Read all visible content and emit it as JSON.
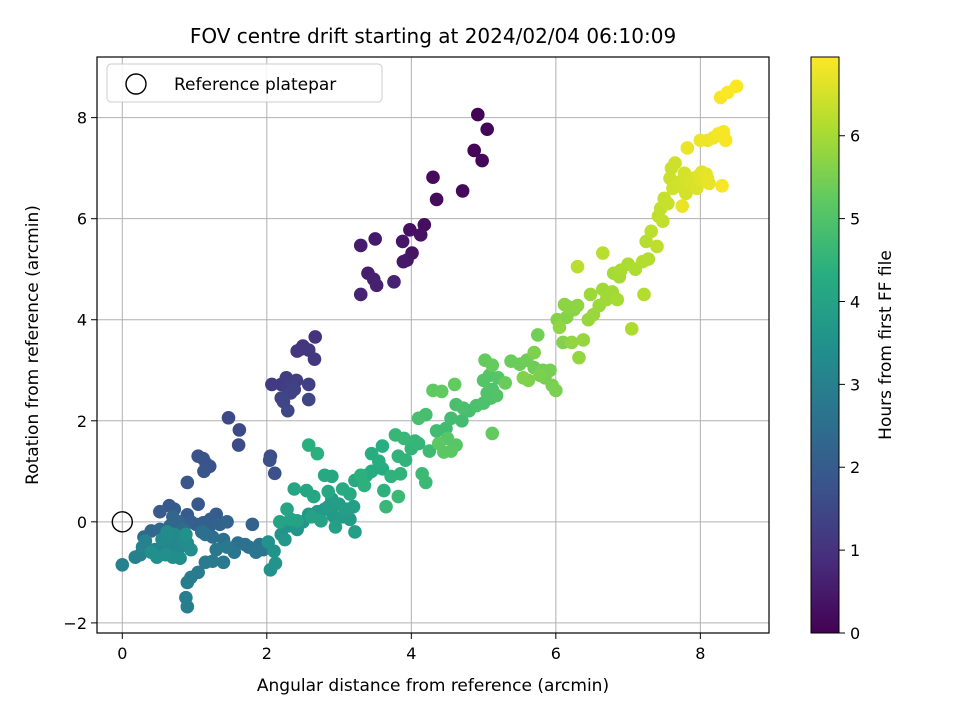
{
  "chart_data": {
    "type": "scatter",
    "title": "FOV centre drift starting at 2024/02/04 06:10:09",
    "xlabel": "Angular distance from reference (arcmin)",
    "ylabel": "Rotation from reference (arcmin)",
    "xlim": [
      -0.35,
      8.95
    ],
    "ylim": [
      -2.2,
      9.2
    ],
    "xticks": [
      0,
      2,
      4,
      6,
      8
    ],
    "yticks": [
      -2,
      0,
      2,
      4,
      6,
      8
    ],
    "grid": true,
    "legend": {
      "placement": "top-left",
      "entries": [
        {
          "label": "Reference platepar",
          "marker": "open-circle"
        }
      ]
    },
    "reference_point": {
      "x": 0,
      "y": 0
    },
    "colorbar": {
      "label": "Hours from first FF file",
      "colormap": "viridis",
      "range": [
        0,
        6.95
      ],
      "ticks": [
        0,
        1,
        2,
        3,
        4,
        5,
        6
      ]
    },
    "points": [
      [
        4.92,
        8.06,
        0.05
      ],
      [
        4.87,
        7.35,
        0.08
      ],
      [
        5.05,
        7.77,
        0.1
      ],
      [
        4.98,
        7.15,
        0.12
      ],
      [
        4.71,
        6.55,
        0.15
      ],
      [
        4.3,
        6.82,
        0.18
      ],
      [
        4.35,
        6.38,
        0.2
      ],
      [
        4.18,
        5.88,
        0.25
      ],
      [
        3.98,
        5.78,
        0.3
      ],
      [
        4.13,
        5.68,
        0.33
      ],
      [
        4.01,
        5.32,
        0.37
      ],
      [
        3.88,
        5.55,
        0.4
      ],
      [
        3.94,
        5.18,
        0.43
      ],
      [
        3.89,
        5.15,
        0.46
      ],
      [
        3.5,
        5.6,
        0.5
      ],
      [
        3.3,
        5.47,
        0.53
      ],
      [
        3.4,
        4.92,
        0.56
      ],
      [
        3.48,
        4.8,
        0.6
      ],
      [
        3.52,
        4.68,
        0.63
      ],
      [
        3.76,
        4.75,
        0.66
      ],
      [
        3.3,
        4.5,
        0.7
      ],
      [
        2.67,
        3.66,
        1.0
      ],
      [
        2.5,
        3.48,
        1.03
      ],
      [
        2.47,
        3.42,
        1.05
      ],
      [
        2.58,
        3.4,
        1.08
      ],
      [
        2.42,
        3.38,
        1.1
      ],
      [
        2.66,
        3.22,
        1.13
      ],
      [
        2.2,
        2.72,
        1.16
      ],
      [
        2.07,
        2.72,
        1.2
      ],
      [
        2.27,
        2.85,
        1.23
      ],
      [
        2.41,
        2.8,
        1.26
      ],
      [
        2.58,
        2.72,
        1.28
      ],
      [
        2.28,
        2.68,
        1.3
      ],
      [
        2.38,
        2.62,
        1.33
      ],
      [
        2.33,
        2.55,
        1.36
      ],
      [
        2.2,
        2.45,
        1.4
      ],
      [
        2.23,
        2.38,
        1.43
      ],
      [
        2.58,
        2.42,
        1.46
      ],
      [
        2.29,
        2.2,
        1.5
      ],
      [
        1.47,
        2.06,
        1.53
      ],
      [
        1.62,
        1.82,
        1.56
      ],
      [
        1.61,
        1.52,
        1.6
      ],
      [
        2.05,
        1.3,
        1.66
      ],
      [
        2.04,
        1.22,
        1.68
      ],
      [
        2.11,
        0.96,
        1.7
      ],
      [
        1.05,
        1.3,
        1.73
      ],
      [
        1.12,
        1.25,
        1.76
      ],
      [
        1.16,
        1.15,
        1.78
      ],
      [
        1.21,
        1.1,
        1.8
      ],
      [
        1.13,
        1.0,
        1.83
      ],
      [
        0.9,
        0.78,
        1.86
      ],
      [
        1.05,
        0.35,
        1.9
      ],
      [
        0.65,
        0.32,
        1.93
      ],
      [
        0.72,
        0.25,
        1.95
      ],
      [
        0.52,
        0.2,
        1.98
      ],
      [
        1.3,
        0.15,
        2.0
      ],
      [
        0.9,
        0.14,
        2.02
      ],
      [
        1.22,
        0.05,
        2.05
      ],
      [
        0.95,
        0.0,
        2.08
      ],
      [
        1.02,
        -0.05,
        2.1
      ],
      [
        1.12,
        -0.02,
        2.12
      ],
      [
        1.2,
        -0.1,
        2.15
      ],
      [
        1.35,
        -0.05,
        2.18
      ],
      [
        1.8,
        -0.05,
        2.2
      ],
      [
        1.45,
        0.0,
        2.22
      ],
      [
        0.7,
        0.1,
        2.25
      ],
      [
        0.78,
        0.0,
        2.28
      ],
      [
        0.66,
        -0.08,
        2.3
      ],
      [
        0.52,
        -0.15,
        2.33
      ],
      [
        0.4,
        -0.18,
        2.36
      ],
      [
        0.3,
        -0.3,
        2.4
      ],
      [
        0.85,
        -0.15,
        2.42
      ],
      [
        0.8,
        -0.22,
        2.45
      ],
      [
        1.1,
        -0.2,
        2.48
      ],
      [
        1.25,
        -0.3,
        2.5
      ],
      [
        1.15,
        -0.25,
        2.52
      ],
      [
        1.4,
        -0.35,
        2.55
      ],
      [
        1.6,
        -0.42,
        2.58
      ],
      [
        1.75,
        -0.5,
        2.6
      ],
      [
        1.7,
        -0.45,
        2.62
      ],
      [
        1.9,
        -0.45,
        2.65
      ],
      [
        1.95,
        -0.55,
        2.68
      ],
      [
        1.85,
        -0.6,
        2.7
      ],
      [
        1.55,
        -0.6,
        2.72
      ],
      [
        1.45,
        -0.5,
        2.75
      ],
      [
        1.3,
        -0.55,
        2.78
      ],
      [
        1.25,
        -0.78,
        2.8
      ],
      [
        1.4,
        -0.8,
        2.82
      ],
      [
        1.15,
        -0.8,
        2.85
      ],
      [
        1.05,
        -1.0,
        2.88
      ],
      [
        0.95,
        -1.1,
        2.9
      ],
      [
        0.9,
        -1.2,
        2.92
      ],
      [
        0.88,
        -1.5,
        2.95
      ],
      [
        0.9,
        -1.68,
        2.98
      ],
      [
        0.0,
        -0.85,
        3.0
      ],
      [
        0.18,
        -0.7,
        3.02
      ],
      [
        0.25,
        -0.65,
        3.04
      ],
      [
        0.28,
        -0.5,
        3.06
      ],
      [
        0.32,
        -0.38,
        3.08
      ],
      [
        0.45,
        -0.55,
        3.1
      ],
      [
        0.5,
        -0.62,
        3.12
      ],
      [
        0.58,
        -0.5,
        3.14
      ],
      [
        0.62,
        -0.58,
        3.16
      ],
      [
        0.7,
        -0.42,
        3.18
      ],
      [
        0.75,
        -0.6,
        3.2
      ],
      [
        0.82,
        -0.48,
        3.22
      ],
      [
        0.55,
        -0.35,
        3.24
      ],
      [
        0.65,
        -0.3,
        3.26
      ],
      [
        0.72,
        -0.25,
        3.28
      ],
      [
        0.62,
        -0.2,
        3.3
      ],
      [
        0.85,
        -0.35,
        3.32
      ],
      [
        0.9,
        -0.42,
        3.34
      ],
      [
        0.95,
        -0.55,
        3.36
      ],
      [
        0.7,
        -0.7,
        3.38
      ],
      [
        0.8,
        -0.72,
        3.4
      ],
      [
        0.6,
        -0.65,
        3.42
      ],
      [
        0.48,
        -0.7,
        3.44
      ],
      [
        0.4,
        -0.6,
        3.46
      ],
      [
        0.88,
        -0.25,
        3.48
      ],
      [
        2.02,
        -0.4,
        3.5
      ],
      [
        2.1,
        -0.58,
        3.52
      ],
      [
        2.05,
        -0.95,
        3.54
      ],
      [
        2.12,
        -0.82,
        3.56
      ],
      [
        2.2,
        -0.25,
        3.58
      ],
      [
        2.3,
        -0.08,
        3.6
      ],
      [
        2.42,
        -0.15,
        3.62
      ],
      [
        2.25,
        -0.35,
        3.64
      ],
      [
        2.5,
        0.0,
        3.66
      ],
      [
        2.58,
        0.15,
        3.68
      ],
      [
        2.7,
        0.2,
        3.7
      ],
      [
        2.8,
        0.25,
        3.72
      ],
      [
        2.92,
        0.12,
        3.74
      ],
      [
        3.05,
        0.1,
        3.76
      ],
      [
        3.15,
        0.05,
        3.78
      ],
      [
        2.85,
        0.3,
        3.8
      ],
      [
        3.0,
        0.35,
        3.82
      ],
      [
        2.9,
        0.45,
        3.84
      ],
      [
        3.1,
        0.25,
        3.86
      ],
      [
        3.2,
        0.3,
        3.88
      ],
      [
        3.22,
        -0.2,
        3.9
      ],
      [
        2.95,
        -0.1,
        3.92
      ],
      [
        2.75,
        0.02,
        3.94
      ],
      [
        2.62,
        0.1,
        3.96
      ],
      [
        2.42,
        0.02,
        3.98
      ],
      [
        2.33,
        0.05,
        4.0
      ],
      [
        2.18,
        0.0,
        4.02
      ],
      [
        2.28,
        0.25,
        4.04
      ],
      [
        2.38,
        0.65,
        4.06
      ],
      [
        2.55,
        0.62,
        4.08
      ],
      [
        2.65,
        0.5,
        4.1
      ],
      [
        2.85,
        0.6,
        4.12
      ],
      [
        2.9,
        0.9,
        4.14
      ],
      [
        2.8,
        0.92,
        4.16
      ],
      [
        3.05,
        0.65,
        4.18
      ],
      [
        3.15,
        0.55,
        4.2
      ],
      [
        3.22,
        0.82,
        4.22
      ],
      [
        3.38,
        0.92,
        4.24
      ],
      [
        3.45,
        1.0,
        4.26
      ],
      [
        3.6,
        1.05,
        4.28
      ],
      [
        3.55,
        1.2,
        4.3
      ],
      [
        3.45,
        1.35,
        4.32
      ],
      [
        3.6,
        1.5,
        4.34
      ],
      [
        2.58,
        1.52,
        4.36
      ],
      [
        2.7,
        1.35,
        4.38
      ],
      [
        3.3,
        0.92,
        4.4
      ],
      [
        3.35,
        0.72,
        4.42
      ],
      [
        3.62,
        0.62,
        4.44
      ],
      [
        3.72,
        0.9,
        4.46
      ],
      [
        3.85,
        0.95,
        4.48
      ],
      [
        3.92,
        1.22,
        4.5
      ],
      [
        3.82,
        1.3,
        4.52
      ],
      [
        4.0,
        1.45,
        4.54
      ],
      [
        4.05,
        1.6,
        4.56
      ],
      [
        4.1,
        1.55,
        4.58
      ],
      [
        3.78,
        1.72,
        4.6
      ],
      [
        3.9,
        1.65,
        4.62
      ],
      [
        3.65,
        0.3,
        4.64
      ],
      [
        3.82,
        0.5,
        4.66
      ],
      [
        4.2,
        0.78,
        4.68
      ],
      [
        4.15,
        0.95,
        4.7
      ],
      [
        4.25,
        1.4,
        4.72
      ],
      [
        4.35,
        1.8,
        4.74
      ],
      [
        4.48,
        1.85,
        4.76
      ],
      [
        4.55,
        2.05,
        4.78
      ],
      [
        4.7,
        2.0,
        4.8
      ],
      [
        4.8,
        2.2,
        4.82
      ],
      [
        4.2,
        2.12,
        4.84
      ],
      [
        4.1,
        2.05,
        4.86
      ],
      [
        4.62,
        2.32,
        4.88
      ],
      [
        4.72,
        2.25,
        4.9
      ],
      [
        4.9,
        2.3,
        4.92
      ],
      [
        5.0,
        2.35,
        4.94
      ],
      [
        5.1,
        2.45,
        4.96
      ],
      [
        5.05,
        2.55,
        4.98
      ],
      [
        5.12,
        2.62,
        5.0
      ],
      [
        5.18,
        2.5,
        5.02
      ],
      [
        5.0,
        2.8,
        5.04
      ],
      [
        5.08,
        2.9,
        5.06
      ],
      [
        5.2,
        2.85,
        5.08
      ],
      [
        4.5,
        1.65,
        5.1
      ],
      [
        4.62,
        1.52,
        5.12
      ],
      [
        4.55,
        1.4,
        5.14
      ],
      [
        4.45,
        1.38,
        5.16
      ],
      [
        4.38,
        1.55,
        5.18
      ],
      [
        4.3,
        2.6,
        5.2
      ],
      [
        4.42,
        2.58,
        5.22
      ],
      [
        4.6,
        2.72,
        5.24
      ],
      [
        5.12,
        1.75,
        5.26
      ],
      [
        5.02,
        3.2,
        5.28
      ],
      [
        5.12,
        3.1,
        5.3
      ],
      [
        5.3,
        2.75,
        5.32
      ],
      [
        5.38,
        3.18,
        5.34
      ],
      [
        5.5,
        3.12,
        5.36
      ],
      [
        5.6,
        3.2,
        5.38
      ],
      [
        5.7,
        3.05,
        5.4
      ],
      [
        5.75,
        3.7,
        5.42
      ],
      [
        5.82,
        3.0,
        5.44
      ],
      [
        5.85,
        2.85,
        5.46
      ],
      [
        5.92,
        3.0,
        5.48
      ],
      [
        5.95,
        2.7,
        5.5
      ],
      [
        6.0,
        2.6,
        5.52
      ],
      [
        5.78,
        2.9,
        5.54
      ],
      [
        5.7,
        3.35,
        5.56
      ],
      [
        5.62,
        2.8,
        5.58
      ],
      [
        5.55,
        2.85,
        5.6
      ],
      [
        6.1,
        3.55,
        5.62
      ],
      [
        6.02,
        4.0,
        5.64
      ],
      [
        6.15,
        4.05,
        5.66
      ],
      [
        6.25,
        4.2,
        5.68
      ],
      [
        6.18,
        4.25,
        5.7
      ],
      [
        6.12,
        4.3,
        5.72
      ],
      [
        6.3,
        4.28,
        5.74
      ],
      [
        6.05,
        3.85,
        5.76
      ],
      [
        6.22,
        3.55,
        5.78
      ],
      [
        6.32,
        3.25,
        5.8
      ],
      [
        6.38,
        3.6,
        5.82
      ],
      [
        6.45,
        4.0,
        5.84
      ],
      [
        6.52,
        4.1,
        5.86
      ],
      [
        6.6,
        4.28,
        5.88
      ],
      [
        6.48,
        4.5,
        5.9
      ],
      [
        6.65,
        4.6,
        5.92
      ],
      [
        6.7,
        4.4,
        5.94
      ],
      [
        6.78,
        4.55,
        5.96
      ],
      [
        6.8,
        4.92,
        5.98
      ],
      [
        6.88,
        4.85,
        6.0
      ],
      [
        6.85,
        4.4,
        6.02
      ],
      [
        6.9,
        4.98,
        6.04
      ],
      [
        7.0,
        5.1,
        6.06
      ],
      [
        7.05,
        3.82,
        6.08
      ],
      [
        7.1,
        5.0,
        6.1
      ],
      [
        7.2,
        5.15,
        6.12
      ],
      [
        7.22,
        4.5,
        6.14
      ],
      [
        7.28,
        5.2,
        6.16
      ],
      [
        7.25,
        5.55,
        6.18
      ],
      [
        6.3,
        5.05,
        6.2
      ],
      [
        6.65,
        5.32,
        6.22
      ],
      [
        7.32,
        5.75,
        6.24
      ],
      [
        7.4,
        5.45,
        6.26
      ],
      [
        7.42,
        6.05,
        6.28
      ],
      [
        7.45,
        6.2,
        6.3
      ],
      [
        7.48,
        5.95,
        6.32
      ],
      [
        7.5,
        6.4,
        6.34
      ],
      [
        7.55,
        6.3,
        6.36
      ],
      [
        7.58,
        6.8,
        6.38
      ],
      [
        7.6,
        7.0,
        6.4
      ],
      [
        7.65,
        7.1,
        6.42
      ],
      [
        7.62,
        6.6,
        6.44
      ],
      [
        7.7,
        6.72,
        6.46
      ],
      [
        7.75,
        6.62,
        6.48
      ],
      [
        7.8,
        6.5,
        6.5
      ],
      [
        7.78,
        6.9,
        6.52
      ],
      [
        7.85,
        6.7,
        6.54
      ],
      [
        7.9,
        6.8,
        6.56
      ],
      [
        7.95,
        6.6,
        6.58
      ],
      [
        7.98,
        6.85,
        6.6
      ],
      [
        8.0,
        6.78,
        6.62
      ],
      [
        8.02,
        6.92,
        6.64
      ],
      [
        8.05,
        6.75,
        6.66
      ],
      [
        8.08,
        6.88,
        6.68
      ],
      [
        8.1,
        6.8,
        6.7
      ],
      [
        8.12,
        6.7,
        6.72
      ],
      [
        7.75,
        6.25,
        6.74
      ],
      [
        7.82,
        7.4,
        6.76
      ],
      [
        8.0,
        7.55,
        6.78
      ],
      [
        8.1,
        7.55,
        6.8
      ],
      [
        8.18,
        7.6,
        6.82
      ],
      [
        8.25,
        7.68,
        6.84
      ],
      [
        8.32,
        7.72,
        6.86
      ],
      [
        8.35,
        7.55,
        6.87
      ],
      [
        8.3,
        6.65,
        6.88
      ],
      [
        8.28,
        8.4,
        6.9
      ],
      [
        8.38,
        8.5,
        6.92
      ],
      [
        8.5,
        8.62,
        6.94
      ]
    ]
  }
}
